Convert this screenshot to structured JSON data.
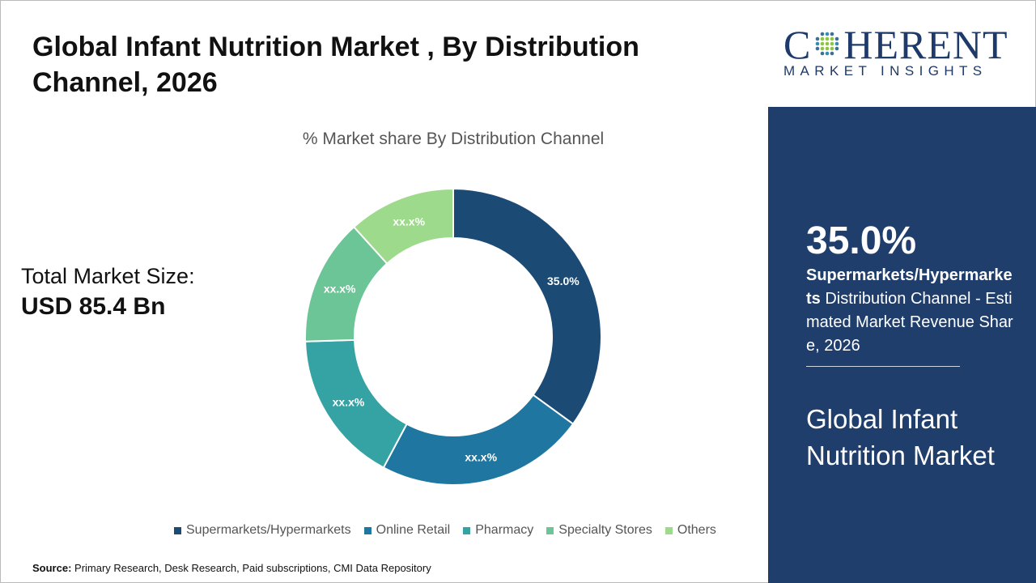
{
  "title": "Global Infant Nutrition Market , By Distribution Channel, 2026",
  "total_market": {
    "label": "Total Market Size:",
    "value": "USD 85.4 Bn"
  },
  "source": {
    "label": "Source:",
    "text": " Primary Research, Desk Research, Paid subscriptions, CMI Data Repository"
  },
  "logo": {
    "main": "COHERENT",
    "sub": "MARKET INSIGHTS"
  },
  "panel": {
    "percent": "35.0%",
    "segment_bold": "Supermarkets/Hypermarkets",
    "segment_rest": " Distribution Channel - Estimated Market Revenue Share, 2026",
    "market_name": "Global Infant Nutrition Market"
  },
  "chart_data": {
    "type": "pie",
    "donut": true,
    "title": "% Market share By Distribution Channel",
    "categories": [
      "Supermarkets/Hypermarkets",
      "Online Retail",
      "Pharmacy",
      "Specialty Stores",
      "Others"
    ],
    "values": [
      35.0,
      22.8,
      16.7,
      13.8,
      11.7
    ],
    "data_labels": [
      "35.0%",
      "xx.x%",
      "xx.x%",
      "xx.x%",
      "xx.x%"
    ],
    "colors": [
      "#1b4a74",
      "#1f77a1",
      "#35a3a3",
      "#6cc596",
      "#9dda8c"
    ],
    "legend": "bottom"
  }
}
